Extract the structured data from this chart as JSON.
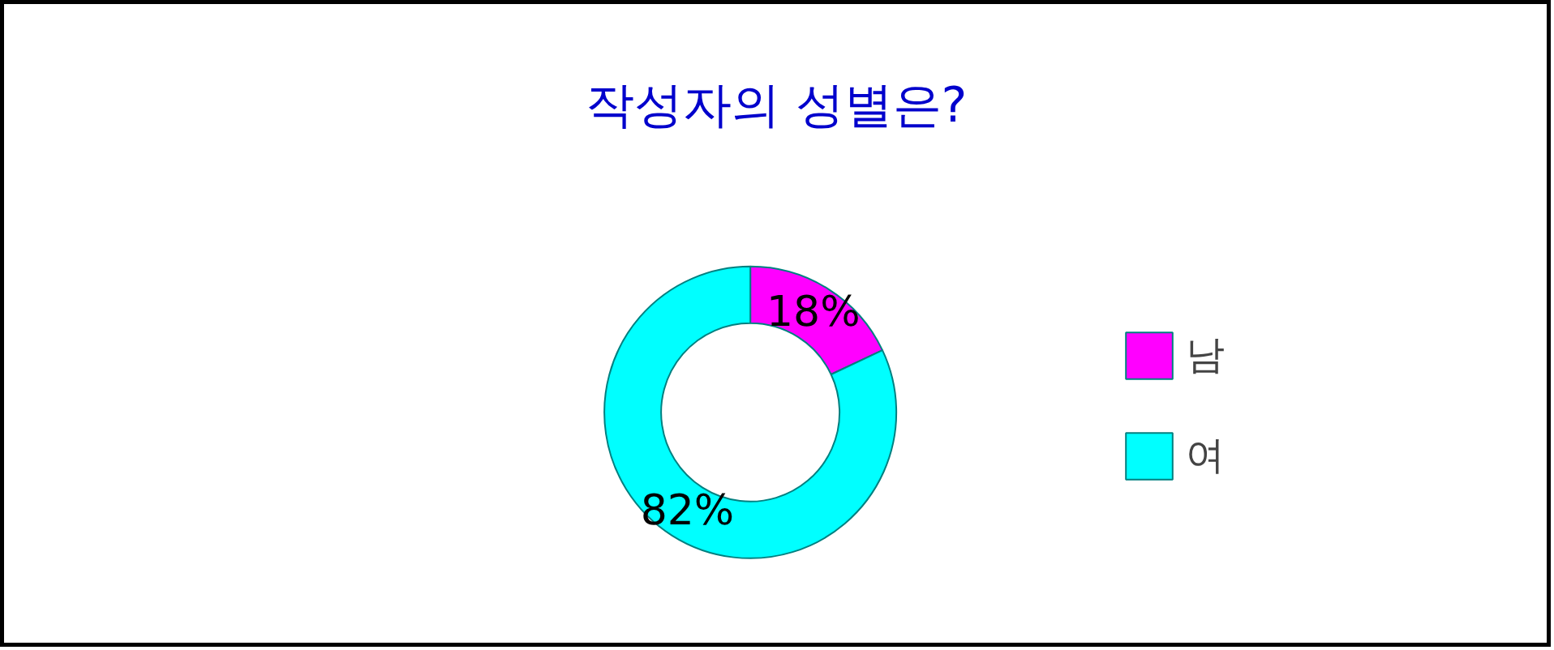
{
  "chart_data": {
    "type": "donut",
    "title": "작성자의 성별은?",
    "categories": [
      "남",
      "여"
    ],
    "values": [
      18,
      82
    ],
    "colors": [
      "#ff00ff",
      "#00ffff"
    ],
    "value_labels": [
      "18%",
      "82%"
    ],
    "legend": "right"
  }
}
